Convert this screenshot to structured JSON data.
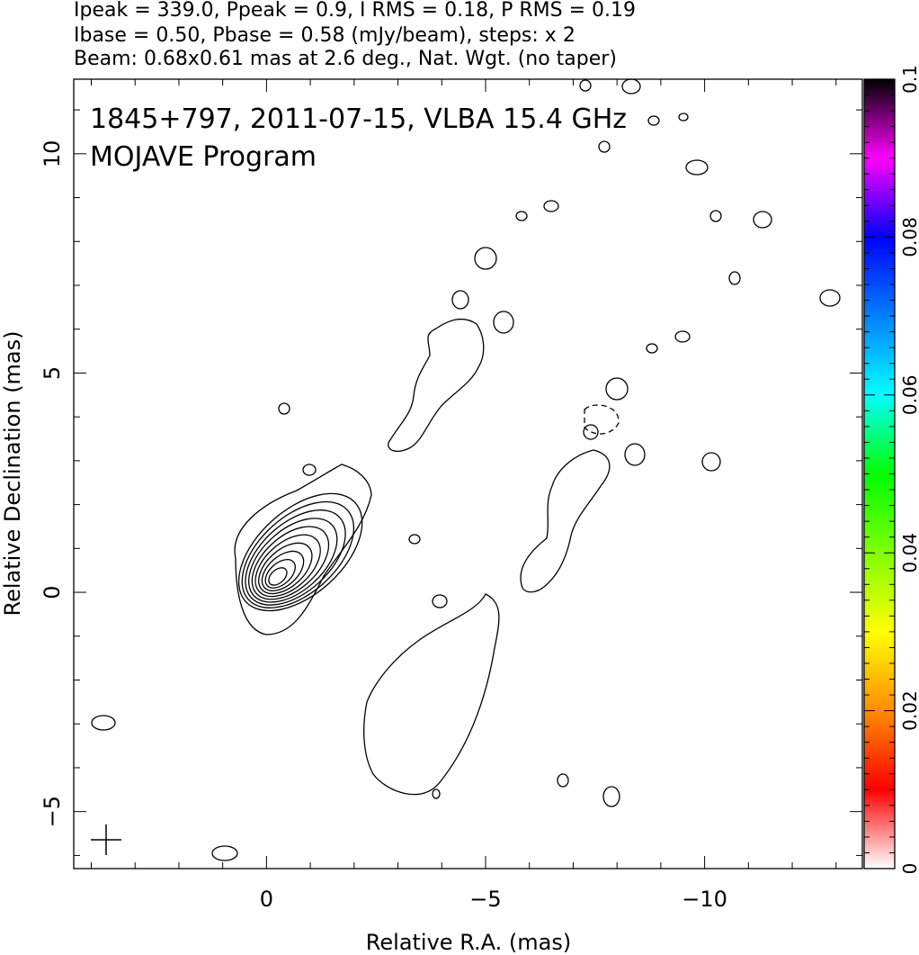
{
  "header": {
    "line1": "Ipeak = 339.0, Ppeak = 0.9, I RMS = 0.18, P RMS = 0.19",
    "line2": "Ibase = 0.50, Pbase = 0.58 (mJy/beam), steps: x 2",
    "line3": "Beam: 0.68x0.61 mas at 2.6 deg., Nat. Wgt. (no taper)"
  },
  "chart_data": {
    "type": "contour",
    "title": "1845+797, 2011-07-15, VLBA 15.4 GHz",
    "subtitle": "MOJAVE Program",
    "xlabel": "Relative R.A. (mas)",
    "ylabel": "Relative Declination (mas)",
    "xlim": [
      4.4,
      -13.6
    ],
    "ylim": [
      -6.3,
      11.7
    ],
    "x_ticks": [
      0,
      -5,
      -10
    ],
    "x_tick_labels": [
      "0",
      "−5",
      "−10"
    ],
    "y_ticks": [
      -5,
      0,
      5,
      10
    ],
    "y_tick_labels": [
      "−5",
      "0",
      "5",
      "10"
    ],
    "colorbar": {
      "min": 0,
      "max": 0.1,
      "ticks": [
        0,
        0.02,
        0.04,
        0.06,
        0.08,
        0.1
      ],
      "tick_labels": [
        "0",
        "0.02",
        "0.04",
        "0.06",
        "0.08",
        "0.1"
      ],
      "colors": [
        "#ffffff",
        "#ff0000",
        "#ff8c00",
        "#ffff00",
        "#80ff00",
        "#00ff00",
        "#00ffff",
        "#0080ff",
        "#0000ff",
        "#ff00ff",
        "#000000"
      ]
    },
    "core": {
      "x": -0.2,
      "y": 0.3,
      "levels": 10
    },
    "features": [
      {
        "name": "core",
        "x": -0.2,
        "y": 0.3,
        "major": 3.4,
        "minor": 1.8
      },
      {
        "name": "jet-blob-south",
        "x": -3.8,
        "y": -2.2,
        "major": 2.8,
        "minor": 1.3
      },
      {
        "name": "jet-filament-north",
        "x": -4.3,
        "y": 4.7,
        "major": 2.3,
        "minor": 0.5
      },
      {
        "name": "jet-filament-west",
        "x": -6.8,
        "y": 1.8,
        "major": 2.6,
        "minor": 0.6
      }
    ],
    "beam": {
      "major_mas": 0.68,
      "minor_mas": 0.61,
      "pa_deg": 2.6
    },
    "grid": false
  }
}
